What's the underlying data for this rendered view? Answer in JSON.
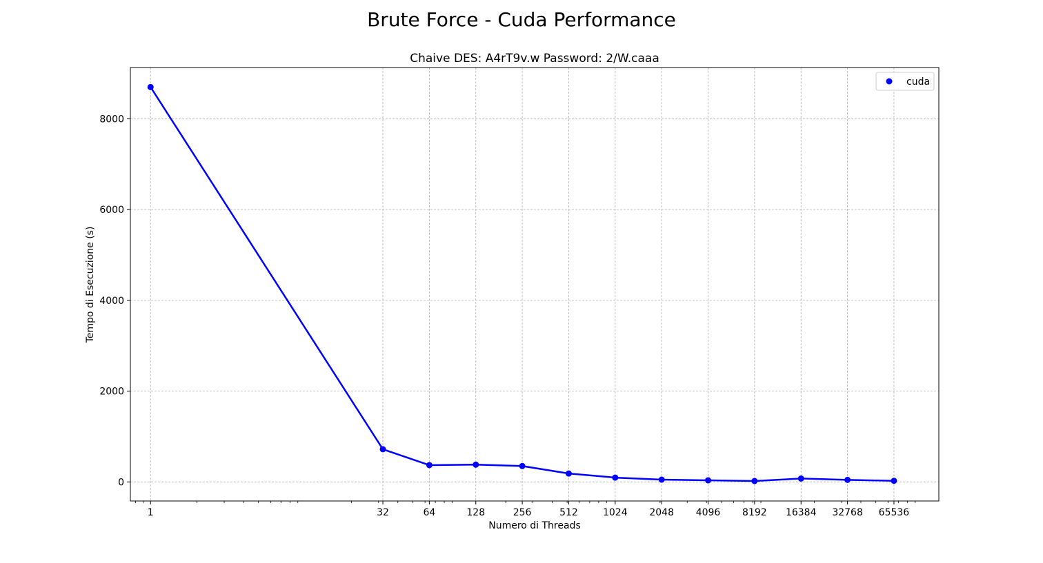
{
  "chart_data": {
    "type": "line",
    "suptitle": "Brute Force - Cuda Performance",
    "title": "Chaive DES: A4rT9v.w Password: 2/W.caaa",
    "xlabel": "Numero di Threads",
    "ylabel": "Tempo di Esecuzione (s)",
    "x_scale": "log2",
    "xlim": [
      0.74,
      128000
    ],
    "ylim": [
      -420,
      9130
    ],
    "x_ticks": [
      1,
      32,
      64,
      128,
      256,
      512,
      1024,
      2048,
      4096,
      8192,
      16384,
      32768,
      65536
    ],
    "x_tick_labels": [
      "1",
      "32",
      "64",
      "128",
      "256",
      "512",
      "1024",
      "2048",
      "4096",
      "8192",
      "16384",
      "32768",
      "65536"
    ],
    "y_ticks": [
      0,
      2000,
      4000,
      6000,
      8000
    ],
    "y_tick_labels": [
      "0",
      "2000",
      "4000",
      "6000",
      "8000"
    ],
    "grid": true,
    "legend_position": "top-right",
    "series": [
      {
        "name": "cuda",
        "color": "#0000ff",
        "x": [
          1,
          32,
          64,
          128,
          256,
          512,
          1024,
          2048,
          4096,
          8192,
          16384,
          32768,
          65536
        ],
        "y": [
          8700,
          720,
          370,
          380,
          350,
          185,
          95,
          50,
          35,
          20,
          75,
          45,
          25
        ]
      }
    ]
  }
}
